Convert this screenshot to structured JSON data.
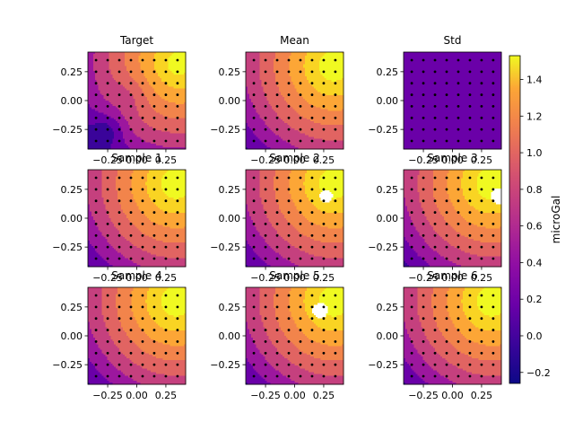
{
  "chart_data": {
    "type": "heatmap",
    "subplots": [
      {
        "title": "Target",
        "field": "target"
      },
      {
        "title": "Mean",
        "field": "smooth"
      },
      {
        "title": "Std",
        "field": "std"
      },
      {
        "title": "Sample 1",
        "field": "smooth"
      },
      {
        "title": "Sample 2",
        "field": "hole"
      },
      {
        "title": "Sample 3",
        "field": "hole_edge"
      },
      {
        "title": "Sample 4",
        "field": "smooth"
      },
      {
        "title": "Sample 5",
        "field": "hole_center"
      },
      {
        "title": "Sample 6",
        "field": "smooth"
      }
    ],
    "xlim": [
      -0.42,
      0.42
    ],
    "ylim": [
      -0.42,
      0.42
    ],
    "x_ticks": [
      -0.25,
      0.0,
      0.25
    ],
    "x_tick_labels": [
      "−0.25",
      "0.00",
      "0.25"
    ],
    "y_ticks": [
      0.25,
      0.0,
      -0.25
    ],
    "y_tick_labels": [
      "0.25",
      "0.00",
      "−0.25"
    ],
    "observation_points_per_axis": 8,
    "colorbar": {
      "label": "microGal",
      "range": [
        -0.26,
        1.53
      ],
      "ticks": [
        -0.2,
        0.0,
        0.2,
        0.4,
        0.6,
        0.8,
        1.0,
        1.2,
        1.4
      ],
      "tick_labels": [
        "−0.2",
        "0.0",
        "0.2",
        "0.4",
        "0.6",
        "0.8",
        "1.0",
        "1.2",
        "1.4"
      ],
      "colormap": "plasma"
    },
    "contour_levels": [
      0.0,
      0.2,
      0.4,
      0.6,
      0.8,
      1.0,
      1.2,
      1.4
    ],
    "colors": {
      "level_0": "#3a049a",
      "level_1": "#6a00a8",
      "level_2": "#9c179e",
      "level_3": "#c5407e",
      "level_4": "#e16462",
      "level_5": "#f2844b",
      "level_6": "#fca636",
      "level_7": "#f9d423",
      "level_8": "#f0f921"
    }
  }
}
